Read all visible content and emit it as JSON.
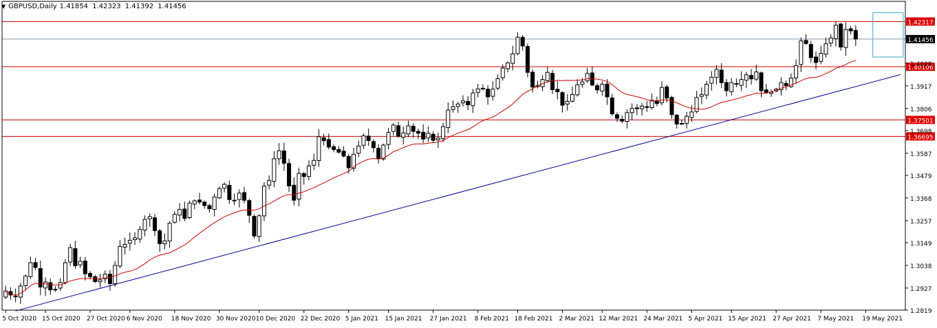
{
  "header": {
    "symbol": "GBPUSD,Daily",
    "open": "1.41854",
    "high": "1.42323",
    "low": "1.41392",
    "close": "1.41456"
  },
  "colors": {
    "background": "#ffffff",
    "candle_up_fill": "#ffffff",
    "candle_down_fill": "#000000",
    "candle_outline": "#000000",
    "ma_line": "#cc0000",
    "level_line": "#cc0000",
    "trend_line": "#000099",
    "current_price_line": "#8898aa",
    "highlight_box": "#33aabb",
    "axis_text": "#000000",
    "badge_red": "#dd0000",
    "badge_black": "#000000"
  },
  "chart_data": {
    "type": "candlestick",
    "title": "GBPUSD,Daily",
    "ylim": [
      1.2819,
      1.429
    ],
    "y_ticks": [
      "1.2819",
      "1.2927",
      "1.3038",
      "1.3149",
      "1.3257",
      "1.3368",
      "1.3479",
      "1.3587",
      "1.3698",
      "1.3806",
      "1.3917",
      "1.4028"
    ],
    "x_tick_labels": [
      "5 Oct 2020",
      "15 Oct 2020",
      "27 Oct 2020",
      "6 Nov 2020",
      "18 Nov 2020",
      "30 Nov 2020",
      "10 Dec 2020",
      "22 Dec 2020",
      "5 Jan 2021",
      "15 Jan 2021",
      "27 Jan 2021",
      "8 Feb 2021",
      "18 Feb 2021",
      "2 Mar 2021",
      "12 Mar 2021",
      "24 Mar 2021",
      "5 Apr 2021",
      "15 Apr 2021",
      "27 Apr 2021",
      "7 May 2021",
      "19 May 2021"
    ],
    "x_tick_index": [
      0,
      8,
      17,
      25,
      34,
      43,
      51,
      60,
      69,
      77,
      86,
      95,
      103,
      112,
      120,
      129,
      138,
      146,
      155,
      164,
      173
    ],
    "horizontal_levels": [
      {
        "value": "1.42317",
        "price": 1.42317,
        "badge": "red"
      },
      {
        "value": "1.41456",
        "price": 1.41456,
        "badge": "black"
      },
      {
        "value": "1.40106",
        "price": 1.40106,
        "badge": "red"
      },
      {
        "value": "1.37501",
        "price": 1.37501,
        "badge": "red"
      },
      {
        "value": "1.36695",
        "price": 1.36695,
        "badge": "red"
      }
    ],
    "trendline": {
      "start": {
        "index": 2,
        "price": 1.2815
      },
      "end": {
        "index": 180,
        "price": 1.3972
      }
    },
    "highlight_box": {
      "from_index": 175,
      "to_index": 180,
      "high": 1.4275,
      "low": 1.4058
    },
    "moving_average": {
      "period": 20,
      "color": "red"
    },
    "closes": [
      1.2913,
      1.2893,
      1.2884,
      1.2937,
      1.2986,
      1.3051,
      1.3028,
      1.2932,
      1.2957,
      1.2918,
      1.2921,
      1.2954,
      1.3051,
      1.3125,
      1.3036,
      1.3058,
      1.2997,
      1.2983,
      1.2959,
      1.2967,
      1.2995,
      1.2949,
      1.3038,
      1.313,
      1.3141,
      1.3161,
      1.3173,
      1.3214,
      1.3263,
      1.3277,
      1.3208,
      1.3144,
      1.3158,
      1.3244,
      1.3288,
      1.3312,
      1.3268,
      1.3343,
      1.3354,
      1.3348,
      1.3331,
      1.3315,
      1.3373,
      1.3414,
      1.3435,
      1.336,
      1.3357,
      1.3392,
      1.3357,
      1.3283,
      1.3182,
      1.3281,
      1.3426,
      1.3454,
      1.356,
      1.3599,
      1.3538,
      1.3427,
      1.3357,
      1.3488,
      1.3473,
      1.3525,
      1.3552,
      1.3668,
      1.3648,
      1.3617,
      1.3605,
      1.3592,
      1.3573,
      1.3516,
      1.3582,
      1.3622,
      1.3672,
      1.3649,
      1.3614,
      1.3561,
      1.3627,
      1.3689,
      1.3725,
      1.367,
      1.3687,
      1.3721,
      1.3694,
      1.3685,
      1.3656,
      1.3685,
      1.365,
      1.3661,
      1.3717,
      1.3798,
      1.3815,
      1.3828,
      1.3843,
      1.3824,
      1.3882,
      1.3902,
      1.3905,
      1.3863,
      1.3901,
      1.3952,
      1.4004,
      1.4029,
      1.4073,
      1.4155,
      1.4112,
      1.3983,
      1.3911,
      1.3919,
      1.3948,
      1.3983,
      1.3898,
      1.3888,
      1.3822,
      1.3841,
      1.3875,
      1.3922,
      1.3936,
      1.3978,
      1.3921,
      1.3897,
      1.3925,
      1.3863,
      1.378,
      1.3758,
      1.3744,
      1.3786,
      1.3807,
      1.3805,
      1.3818,
      1.3811,
      1.3843,
      1.3831,
      1.3909,
      1.3857,
      1.3776,
      1.373,
      1.3733,
      1.3768,
      1.3789,
      1.386,
      1.3875,
      1.3925,
      1.3959,
      1.3998,
      1.3932,
      1.3893,
      1.3933,
      1.3925,
      1.3948,
      1.3971,
      1.3951,
      1.3985,
      1.3893,
      1.3885,
      1.3886,
      1.3901,
      1.3933,
      1.3918,
      1.3955,
      1.4016,
      1.4137,
      1.4124,
      1.4055,
      1.4031,
      1.4076,
      1.4123,
      1.4151,
      1.4214,
      1.4107,
      1.4193,
      1.4186,
      1.4146
    ]
  },
  "axes": {
    "price_label": "",
    "time_label": ""
  }
}
